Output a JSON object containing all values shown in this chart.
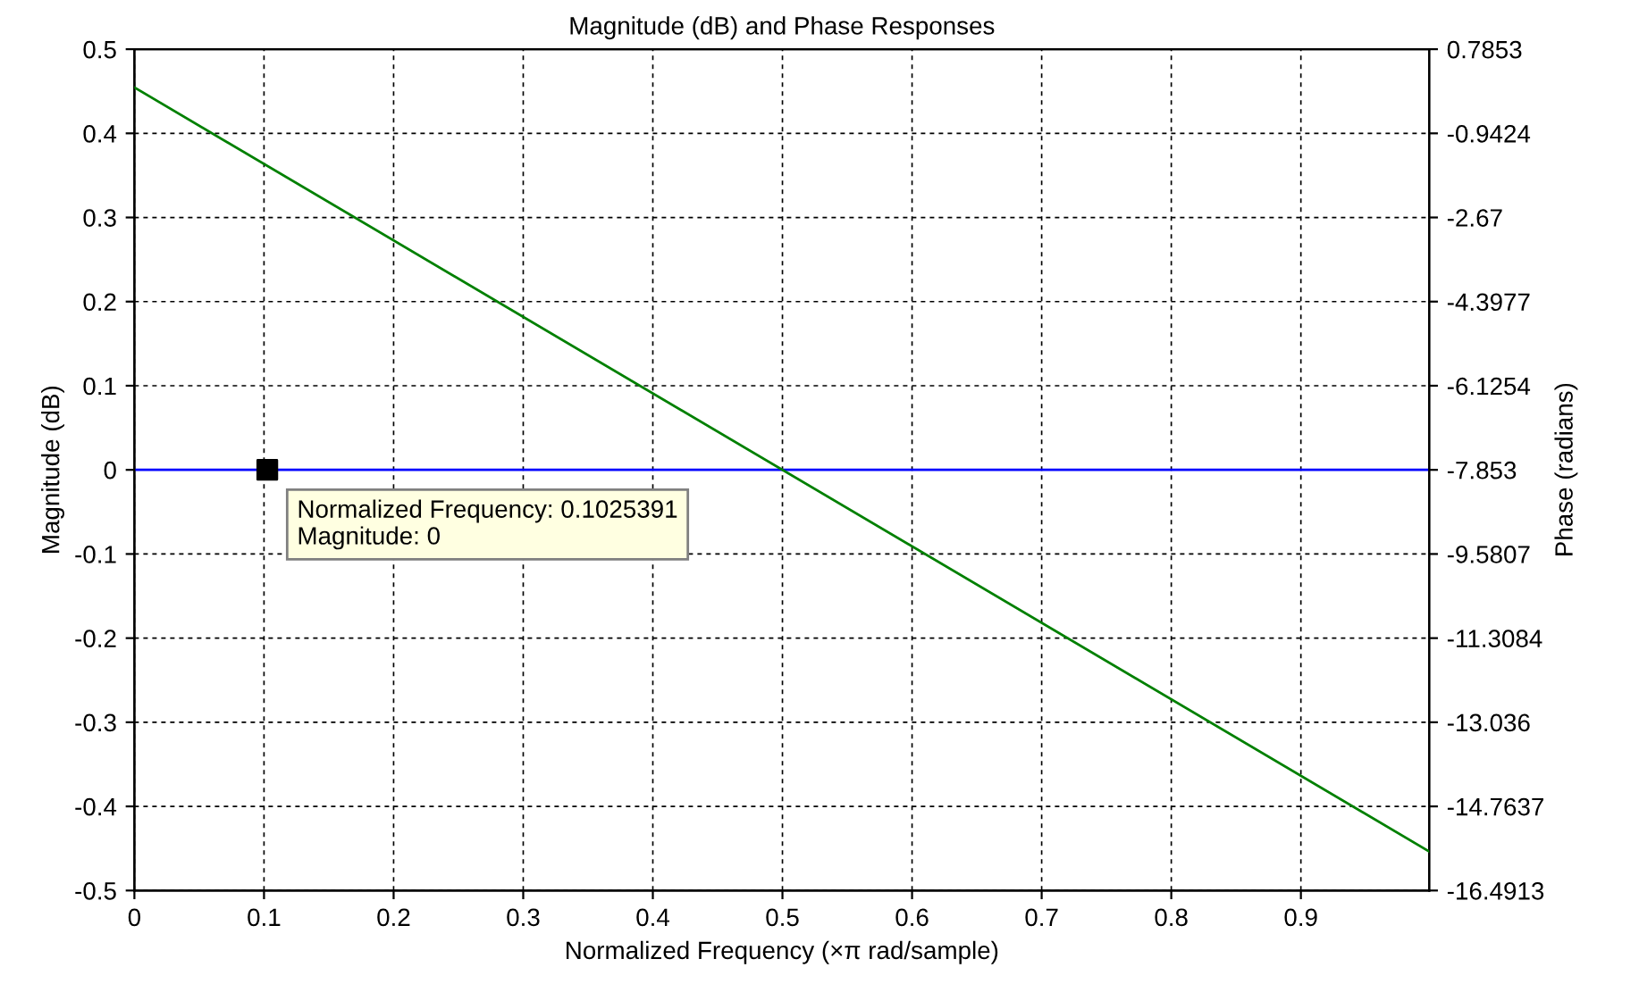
{
  "chart_data": {
    "type": "line",
    "title": "Magnitude (dB) and Phase Responses",
    "xlabel": "Normalized Frequency (×π rad/sample)",
    "ylabel": "Magnitude (dB)",
    "y2label": "Phase (radians)",
    "series": [
      {
        "color": "#0000ff",
        "x": [
          0,
          0.999
        ],
        "values": [
          0,
          0
        ]
      },
      {
        "color": "#008000",
        "axis": "y2",
        "x": [
          0,
          0.999
        ],
        "values": [
          0,
          -15.69
        ]
      },
      {
        "type": "scatter",
        "marker": "square",
        "color": "#000000",
        "x": [
          0.1025391
        ],
        "values": [
          0
        ]
      }
    ],
    "annotations": [
      {
        "text": "Normalized Frequency: 0.1025391\nMagnitude: 0",
        "x": 0.1025391,
        "y": 0
      }
    ],
    "xlim": [
      0,
      0.999
    ],
    "xticks": [
      0,
      0.1,
      0.2,
      0.3,
      0.4,
      0.5,
      0.6,
      0.7,
      0.8,
      0.9
    ],
    "ylim": [
      -0.5,
      0.5
    ],
    "yticks": [
      -0.5,
      -0.4,
      -0.3,
      -0.2,
      -0.1,
      0,
      0.1,
      0.2,
      0.3,
      0.4,
      0.5
    ],
    "y2lim": [
      -16.4913,
      0.7853
    ],
    "y2ticks": [
      -16.4913,
      -14.7637,
      -13.036,
      -11.3084,
      -9.5807,
      -7.853,
      -6.1254,
      -4.3977,
      -2.67,
      -0.9424,
      0.7853
    ],
    "grid": true,
    "line_style": "solid"
  }
}
